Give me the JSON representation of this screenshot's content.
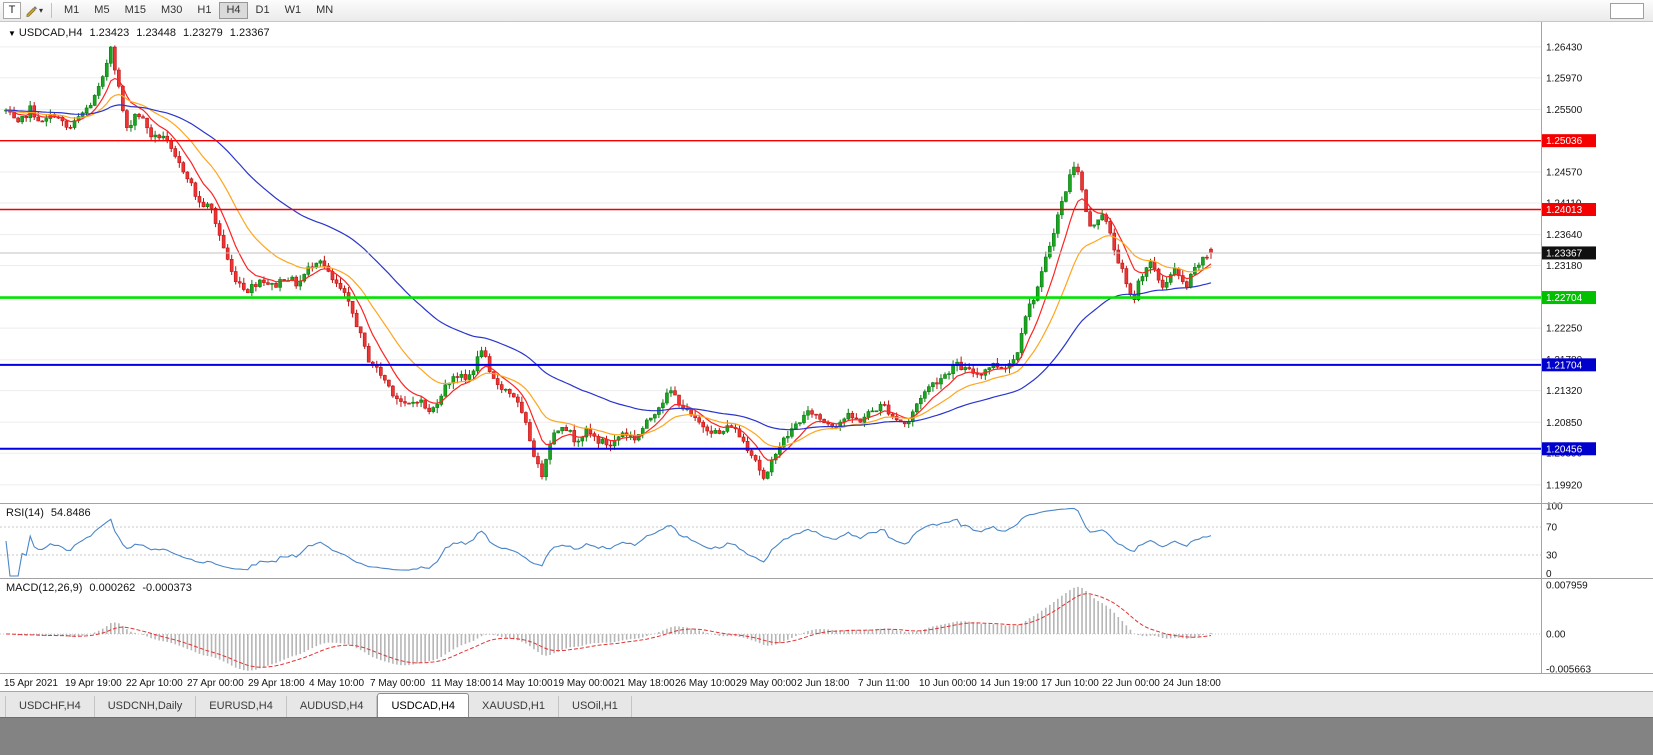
{
  "toolbar": {
    "t_button_label": "T",
    "dropdown_icon": "▾",
    "timeframes": [
      "M1",
      "M5",
      "M15",
      "M30",
      "H1",
      "H4",
      "D1",
      "W1",
      "MN"
    ],
    "active_timeframe": "H4"
  },
  "chart_header": {
    "menu_icon": "▼",
    "symbol": "USDCAD,H4",
    "open": "1.23423",
    "high": "1.23448",
    "low": "1.23279",
    "close": "1.23367"
  },
  "price_axis": {
    "ticks": [
      "1.26430",
      "1.25970",
      "1.25500",
      "1.25030",
      "1.24570",
      "1.24110",
      "1.23640",
      "1.23180",
      "1.22710",
      "1.22250",
      "1.21780",
      "1.21320",
      "1.20850",
      "1.20390",
      "1.19920"
    ],
    "badges": [
      {
        "value": "1.25036",
        "color": "#f40000",
        "text": "#ffffff"
      },
      {
        "value": "1.24013",
        "color": "#f40000",
        "text": "#ffffff"
      },
      {
        "value": "1.23367",
        "color": "#101010",
        "text": "#ffffff"
      },
      {
        "value": "1.22704",
        "color": "#00c000",
        "text": "#ffffff"
      },
      {
        "value": "1.21704",
        "color": "#0000cc",
        "text": "#ffffff"
      },
      {
        "value": "1.20456",
        "color": "#0000cc",
        "text": "#ffffff"
      }
    ]
  },
  "bottom_tabs": {
    "tabs": [
      "USDCHF,H4",
      "USDCNH,Daily",
      "EURUSD,H4",
      "AUDUSD,H4",
      "USDCAD,H4",
      "XAUUSD,H1",
      "USOil,H1"
    ],
    "active": "USDCAD,H4"
  },
  "chart_data": {
    "type": "candlestick",
    "symbol": "USDCAD",
    "timeframe": "H4",
    "last_bar": {
      "open": 1.23423,
      "high": 1.23448,
      "low": 1.23279,
      "close": 1.23367
    },
    "current_price": 1.23367,
    "price_range": {
      "top": 1.268,
      "bottom": 1.1965
    },
    "bars_count": 300,
    "volatility": 0.0011,
    "noise_seed": 7,
    "horizontal_levels": [
      {
        "price": 1.25036,
        "color": "#f40000",
        "width": 1.4
      },
      {
        "price": 1.24013,
        "color": "#f40000",
        "width": 1.4
      },
      {
        "price": 1.22704,
        "color": "#00e400",
        "width": 2.6
      },
      {
        "price": 1.21704,
        "color": "#0000e0",
        "width": 2
      },
      {
        "price": 1.20456,
        "color": "#0000e0",
        "width": 2
      }
    ],
    "moving_averages": [
      {
        "name": "fast",
        "type": "ema",
        "period": 8,
        "color": "#ff2323"
      },
      {
        "name": "mid",
        "type": "ema",
        "period": 20,
        "color": "#ffa51e"
      },
      {
        "name": "slow",
        "type": "ema",
        "period": 55,
        "color": "#2a35cc"
      }
    ],
    "indicators": {
      "rsi": {
        "label": "RSI(14)",
        "value": "54.8486",
        "period": 14,
        "levels": [
          70,
          30
        ],
        "scale": [
          "100",
          "70",
          "30",
          "0"
        ],
        "color": "#4a86c8"
      },
      "macd": {
        "label": "MACD(12,26,9)",
        "main": "0.000262",
        "signal": "-0.000373",
        "fast": 12,
        "slow": 26,
        "signal_period": 9,
        "scale_top": "0.007959",
        "scale_zero": "0.00",
        "scale_bottom": "-0.005663",
        "histogram_color": "#b6b6b6",
        "signal_color": "#e23434"
      }
    },
    "colors": {
      "up": "#0b7c12",
      "up_fill": "#19a51f",
      "down": "#b91414",
      "down_fill": "#f03333",
      "grid": "#ededed",
      "dashed_level": "#c9c9c9",
      "separator": "#a3a3a3",
      "axis_text": "#141414",
      "current_price_line": "#c0c0c0"
    },
    "time_axis": [
      "15 Apr 2021",
      "19 Apr 19:00",
      "22 Apr 10:00",
      "27 Apr 00:00",
      "29 Apr 18:00",
      "4 May 10:00",
      "7 May 00:00",
      "11 May 18:00",
      "14 May 10:00",
      "19 May 00:00",
      "21 May 18:00",
      "26 May 10:00",
      "29 May 00:00",
      "2 Jun 18:00",
      "7 Jun 11:00",
      "10 Jun 00:00",
      "14 Jun 19:00",
      "17 Jun 10:00",
      "22 Jun 00:00",
      "24 Jun 18:00"
    ],
    "price_path": [
      [
        0.0,
        1.2548
      ],
      [
        0.01,
        1.2526
      ],
      [
        0.02,
        1.2551
      ],
      [
        0.03,
        1.2529
      ],
      [
        0.04,
        1.2544
      ],
      [
        0.052,
        1.2519
      ],
      [
        0.062,
        1.2541
      ],
      [
        0.072,
        1.2562
      ],
      [
        0.08,
        1.2592
      ],
      [
        0.087,
        1.2646
      ],
      [
        0.093,
        1.2588
      ],
      [
        0.1,
        1.2518
      ],
      [
        0.108,
        1.2547
      ],
      [
        0.115,
        1.2531
      ],
      [
        0.122,
        1.2506
      ],
      [
        0.13,
        1.2513
      ],
      [
        0.14,
        1.2477
      ],
      [
        0.15,
        1.2454
      ],
      [
        0.16,
        1.2411
      ],
      [
        0.17,
        1.2404
      ],
      [
        0.178,
        1.2359
      ],
      [
        0.188,
        1.2304
      ],
      [
        0.2,
        1.2281
      ],
      [
        0.212,
        1.2299
      ],
      [
        0.222,
        1.2286
      ],
      [
        0.232,
        1.2303
      ],
      [
        0.242,
        1.2289
      ],
      [
        0.252,
        1.2316
      ],
      [
        0.26,
        1.2331
      ],
      [
        0.27,
        1.2297
      ],
      [
        0.28,
        1.2277
      ],
      [
        0.29,
        1.2237
      ],
      [
        0.3,
        1.2181
      ],
      [
        0.312,
        1.2154
      ],
      [
        0.322,
        1.2127
      ],
      [
        0.332,
        1.2107
      ],
      [
        0.342,
        1.2121
      ],
      [
        0.352,
        1.2097
      ],
      [
        0.362,
        1.2131
      ],
      [
        0.372,
        1.2157
      ],
      [
        0.382,
        1.2147
      ],
      [
        0.39,
        1.2172
      ],
      [
        0.395,
        1.2197
      ],
      [
        0.402,
        1.2151
      ],
      [
        0.412,
        1.2137
      ],
      [
        0.422,
        1.2124
      ],
      [
        0.432,
        1.2077
      ],
      [
        0.44,
        1.2027
      ],
      [
        0.444,
        1.2003
      ],
      [
        0.452,
        1.2061
      ],
      [
        0.462,
        1.2084
      ],
      [
        0.472,
        1.2059
      ],
      [
        0.482,
        1.2071
      ],
      [
        0.492,
        1.2057
      ],
      [
        0.502,
        1.2051
      ],
      [
        0.512,
        1.2071
      ],
      [
        0.522,
        1.2061
      ],
      [
        0.532,
        1.2084
      ],
      [
        0.542,
        1.2111
      ],
      [
        0.552,
        1.2131
      ],
      [
        0.562,
        1.2107
      ],
      [
        0.572,
        1.2087
      ],
      [
        0.582,
        1.2077
      ],
      [
        0.592,
        1.2067
      ],
      [
        0.602,
        1.2081
      ],
      [
        0.612,
        1.2057
      ],
      [
        0.622,
        1.2031
      ],
      [
        0.63,
        1.1994
      ],
      [
        0.638,
        1.2041
      ],
      [
        0.648,
        1.2064
      ],
      [
        0.658,
        1.2087
      ],
      [
        0.668,
        1.2101
      ],
      [
        0.678,
        1.2087
      ],
      [
        0.688,
        1.2081
      ],
      [
        0.698,
        1.2094
      ],
      [
        0.708,
        1.2087
      ],
      [
        0.718,
        1.2101
      ],
      [
        0.728,
        1.2111
      ],
      [
        0.738,
        1.2091
      ],
      [
        0.748,
        1.2081
      ],
      [
        0.758,
        1.2121
      ],
      [
        0.768,
        1.2141
      ],
      [
        0.778,
        1.2154
      ],
      [
        0.788,
        1.2171
      ],
      [
        0.798,
        1.2161
      ],
      [
        0.808,
        1.2157
      ],
      [
        0.818,
        1.2171
      ],
      [
        0.828,
        1.2167
      ],
      [
        0.838,
        1.2181
      ],
      [
        0.845,
        1.2241
      ],
      [
        0.852,
        1.2267
      ],
      [
        0.858,
        1.2294
      ],
      [
        0.865,
        1.2341
      ],
      [
        0.872,
        1.2387
      ],
      [
        0.878,
        1.2421
      ],
      [
        0.884,
        1.2457
      ],
      [
        0.888,
        1.2477
      ],
      [
        0.892,
        1.2437
      ],
      [
        0.896,
        1.2401
      ],
      [
        0.9,
        1.2371
      ],
      [
        0.905,
        1.2387
      ],
      [
        0.91,
        1.2397
      ],
      [
        0.915,
        1.2371
      ],
      [
        0.92,
        1.2341
      ],
      [
        0.925,
        1.2317
      ],
      [
        0.93,
        1.2287
      ],
      [
        0.935,
        1.2261
      ],
      [
        0.94,
        1.2294
      ],
      [
        0.945,
        1.2314
      ],
      [
        0.95,
        1.2321
      ],
      [
        0.955,
        1.2301
      ],
      [
        0.96,
        1.2287
      ],
      [
        0.965,
        1.2301
      ],
      [
        0.97,
        1.2311
      ],
      [
        0.975,
        1.2294
      ],
      [
        0.98,
        1.2287
      ],
      [
        0.985,
        1.2307
      ],
      [
        0.99,
        1.2321
      ],
      [
        0.995,
        1.2327
      ],
      [
        1.0,
        1.23367
      ]
    ]
  }
}
